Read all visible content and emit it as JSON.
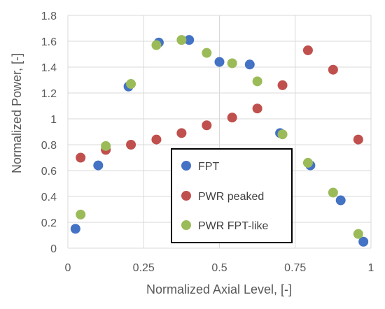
{
  "chart_data": {
    "type": "scatter",
    "xlabel": "Normalized Axial Level, [-]",
    "ylabel": "Normalized Power, [-]",
    "xlim": [
      0,
      1
    ],
    "ylim": [
      0,
      1.8
    ],
    "x_ticks": [
      "0",
      "0.25",
      "0.5",
      "0.75",
      "1"
    ],
    "y_ticks": [
      "0",
      "0.2",
      "0.4",
      "0.6",
      "0.8",
      "1",
      "1.2",
      "1.4",
      "1.6",
      "1.8"
    ],
    "grid": "horizontal and vertical",
    "legend_position": "lower-center",
    "series": [
      {
        "name": "FPT",
        "color": "#4472C4",
        "x": [
          0.025,
          0.1,
          0.2,
          0.3,
          0.4,
          0.5,
          0.6,
          0.7,
          0.8,
          0.9,
          0.975
        ],
        "y": [
          0.15,
          0.64,
          1.25,
          1.59,
          1.61,
          1.44,
          1.42,
          0.89,
          0.64,
          0.37,
          0.05
        ]
      },
      {
        "name": "PWR peaked",
        "color": "#C0504D",
        "x": [
          0.042,
          0.125,
          0.208,
          0.292,
          0.375,
          0.458,
          0.542,
          0.625,
          0.708,
          0.792,
          0.875,
          0.958
        ],
        "y": [
          0.7,
          0.76,
          0.8,
          0.84,
          0.89,
          0.95,
          1.01,
          1.08,
          1.26,
          1.53,
          1.38,
          0.84
        ]
      },
      {
        "name": "PWR FPT-like",
        "color": "#9BBB59",
        "x": [
          0.042,
          0.125,
          0.208,
          0.292,
          0.375,
          0.458,
          0.542,
          0.625,
          0.708,
          0.792,
          0.875,
          0.958
        ],
        "y": [
          0.26,
          0.79,
          1.27,
          1.57,
          1.61,
          1.51,
          1.43,
          1.29,
          0.88,
          0.66,
          0.43,
          0.11
        ]
      }
    ]
  }
}
